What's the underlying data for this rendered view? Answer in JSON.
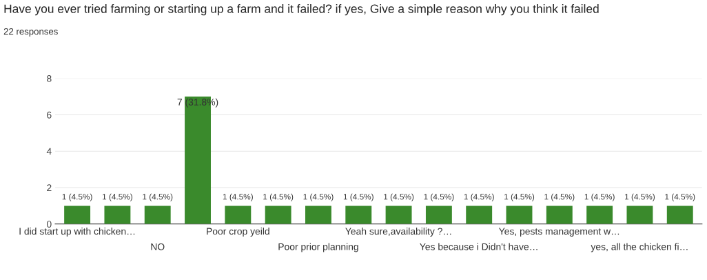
{
  "chart_data": {
    "type": "bar",
    "title": "Have you ever tried farming or starting up a farm and it failed? if yes, Give a simple reason why you think it failed",
    "subtitle": "22 responses",
    "categories": [
      "I did start up with chicken…",
      null,
      "NO",
      null,
      "Poor crop yeild",
      null,
      "Poor prior planning",
      null,
      "Yeah sure,availability ?…",
      null,
      "Yes because i Didn't have…",
      null,
      "Yes, pests management w…",
      null,
      "yes, all the chicken fi…",
      null
    ],
    "values": [
      1,
      1,
      1,
      7,
      1,
      1,
      1,
      1,
      1,
      1,
      1,
      1,
      1,
      1,
      1,
      1
    ],
    "value_labels": [
      "1 (4.5%)",
      "1 (4.5%)",
      "1 (4.5%)",
      "7 (31.8%)",
      "1 (4.5%)",
      "1 (4.5%)",
      "1 (4.5%)",
      "1 (4.5%)",
      "1 (4.5%)",
      "1 (4.5%)",
      "1 (4.5%)",
      "1 (4.5%)",
      "1 (4.5%)",
      "1 (4.5%)",
      "1 (4.5%)",
      "1 (4.5%)"
    ],
    "color": "#3a8a2c",
    "ylim": [
      0,
      8
    ],
    "yticks": [
      0,
      2,
      4,
      6,
      8
    ],
    "grid": "y",
    "legend": false
  }
}
